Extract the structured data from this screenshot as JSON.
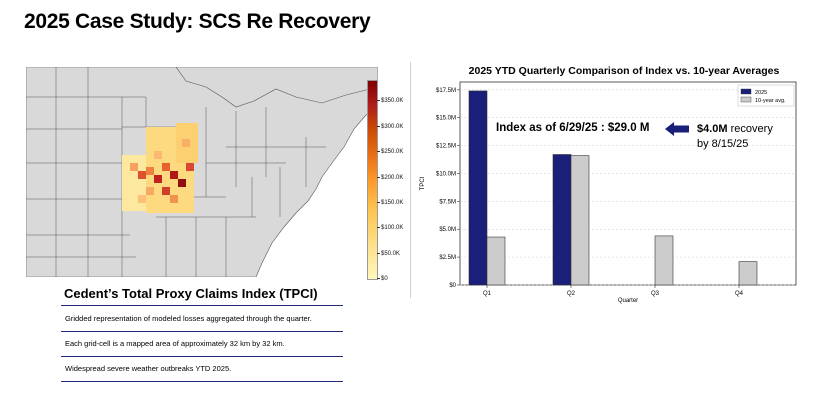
{
  "page": {
    "title": "2025 Case Study: SCS Re Recovery"
  },
  "map": {
    "colorbar_ticks": [
      "$350.0K",
      "$300.0K",
      "$250.0K",
      "$200.0K",
      "$150.0K",
      "$100.0K",
      "$50.0K",
      "$0"
    ],
    "colors": {
      "land": "#d9d9d9",
      "border": "#555555",
      "low": "#fff3b0",
      "high": "#8b0000"
    }
  },
  "tpci": {
    "heading": "Cedent’s Total Proxy Claims Index (TPCI)",
    "bullets": [
      "Gridded representation of modeled losses aggregated through the quarter.",
      "Each grid-cell is a mapped area of approximately 32 km by 32 km.",
      "Widespread severe weather outbreaks YTD 2025."
    ]
  },
  "annotation": {
    "index_text": "Index as of 6/29/25 :  $29.0 M",
    "recovery_amount": "$4.0M",
    "recovery_word": "recovery",
    "recovery_date": "by 8/15/25",
    "arrow_color": "#1a1f7a"
  },
  "chart_data": {
    "type": "bar",
    "title": "2025 YTD Quarterly Comparison of Index  vs. 10-year Averages",
    "xlabel": "Quarter",
    "ylabel": "TPCI",
    "categories": [
      "Q1",
      "Q2",
      "Q3",
      "Q4"
    ],
    "series": [
      {
        "name": "2025",
        "color": "#1a1f7a",
        "values": [
          17.4,
          11.7,
          0,
          0
        ]
      },
      {
        "name": "10-year avg.",
        "color": "#cccccc",
        "values": [
          4.3,
          11.6,
          4.4,
          2.1
        ]
      }
    ],
    "ylim": [
      0,
      18.2
    ],
    "ytick_values": [
      0,
      2.5,
      5.0,
      7.5,
      10.0,
      12.5,
      15.0,
      17.5
    ],
    "ytick_labels": [
      "$0",
      "$2.5M",
      "$5.0M",
      "$7.5M",
      "$10.0M",
      "$12.5M",
      "$15.0M",
      "$17.5M"
    ],
    "grid": true,
    "legend": "top-right"
  }
}
